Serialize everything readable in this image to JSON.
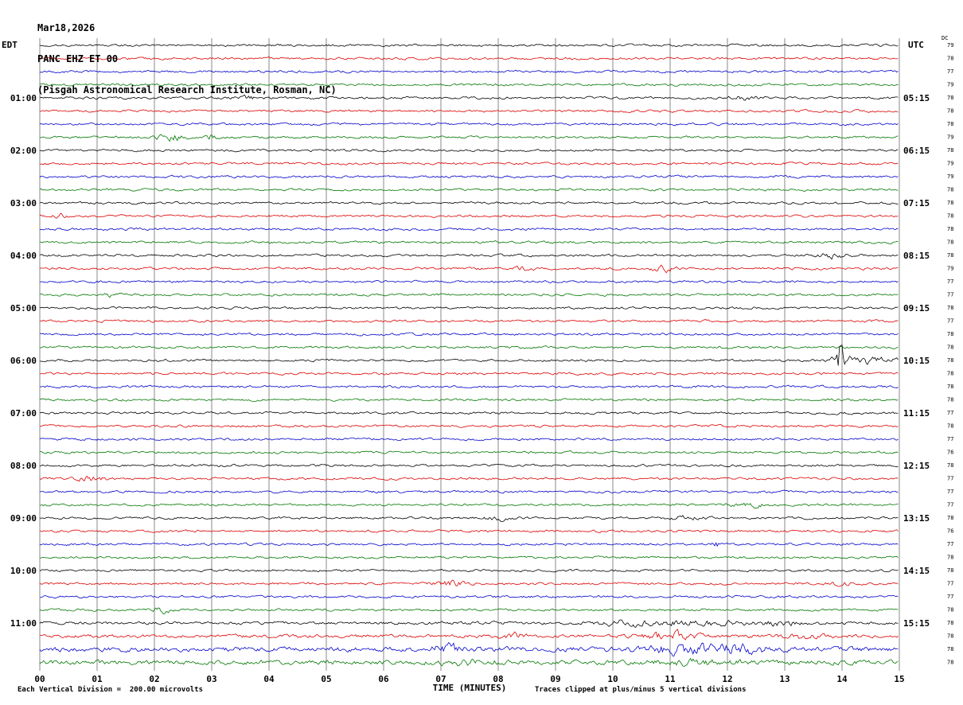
{
  "header": {
    "date": "Mar18,2026",
    "station": "PANC EHZ ET 00",
    "location": "(Pisgah Astronomical Research Institute, Rosman, NC)"
  },
  "left_axis_label": "EDT",
  "right_axis_label": "UTC",
  "dc_label": "DC",
  "x_axis": {
    "title": "TIME (MINUTES)",
    "ticks": [
      "00",
      "01",
      "02",
      "03",
      "04",
      "05",
      "06",
      "07",
      "08",
      "09",
      "10",
      "11",
      "12",
      "13",
      "14",
      "15"
    ]
  },
  "footer": {
    "left": "Each Vertical Division =  200.00 microvolts",
    "right": "Traces clipped at plus/minus 5 vertical divisions"
  },
  "colors": {
    "trace_cycle": [
      "#000000",
      "#dd0000",
      "#0000cc",
      "#007700"
    ],
    "grid": "#888888",
    "text": "#000000"
  },
  "chart_data": {
    "type": "line",
    "subtype": "helicorder-seismogram",
    "title": "PANC EHZ ET 00 webicorder, Mar18,2026",
    "xlabel": "TIME (MINUTES)",
    "xlim": [
      0,
      15
    ],
    "minutes_per_row": 15,
    "rows_per_hour": 4,
    "clip_divisions": 5,
    "microvolts_per_division": 200.0,
    "rows": [
      {
        "t": "00:00",
        "dc": 79
      },
      {
        "t": "00:15",
        "dc": 78
      },
      {
        "t": "00:30",
        "dc": 77
      },
      {
        "t": "00:45",
        "dc": 79
      },
      {
        "t": "01:00",
        "dc": 78,
        "L": "01:00",
        "R": "05:15",
        "ev": [
          [
            3.7,
            0.25,
            1.5
          ],
          [
            12.3,
            0.3,
            1.2
          ]
        ]
      },
      {
        "t": "01:15",
        "dc": 78
      },
      {
        "t": "01:30",
        "dc": 78
      },
      {
        "t": "01:45",
        "dc": 79,
        "ev": [
          [
            2.3,
            0.25,
            2.8
          ],
          [
            3.0,
            0.12,
            2.2
          ]
        ]
      },
      {
        "t": "02:00",
        "dc": 78,
        "L": "02:00",
        "R": "06:15"
      },
      {
        "t": "02:15",
        "dc": 79
      },
      {
        "t": "02:30",
        "dc": 79
      },
      {
        "t": "02:45",
        "dc": 78
      },
      {
        "t": "03:00",
        "dc": 78,
        "L": "03:00",
        "R": "07:15"
      },
      {
        "t": "03:15",
        "dc": 78,
        "ev": [
          [
            0.35,
            0.12,
            2.2
          ]
        ]
      },
      {
        "t": "03:30",
        "dc": 78
      },
      {
        "t": "03:45",
        "dc": 78
      },
      {
        "t": "04:00",
        "dc": 78,
        "L": "04:00",
        "R": "08:15",
        "ev": [
          [
            13.8,
            0.3,
            1.8
          ]
        ]
      },
      {
        "t": "04:15",
        "dc": 79,
        "ev": [
          [
            8.45,
            0.15,
            1.6
          ],
          [
            10.85,
            0.2,
            2.6
          ]
        ]
      },
      {
        "t": "04:30",
        "dc": 77
      },
      {
        "t": "04:45",
        "dc": 77,
        "ev": [
          [
            1.2,
            0.15,
            1.8
          ]
        ]
      },
      {
        "t": "05:00",
        "dc": 78,
        "L": "05:00",
        "R": "09:15"
      },
      {
        "t": "05:15",
        "dc": 77
      },
      {
        "t": "05:30",
        "dc": 78
      },
      {
        "t": "05:45",
        "dc": 78
      },
      {
        "t": "06:00",
        "dc": 78,
        "L": "06:00",
        "R": "10:15",
        "ev": [
          [
            13.95,
            0.08,
            20
          ],
          [
            14.2,
            0.35,
            2.6
          ],
          [
            14.6,
            0.5,
            1.5
          ]
        ]
      },
      {
        "t": "06:15",
        "dc": 78
      },
      {
        "t": "06:30",
        "dc": 78
      },
      {
        "t": "06:45",
        "dc": 78
      },
      {
        "t": "07:00",
        "dc": 77,
        "L": "07:00",
        "R": "11:15"
      },
      {
        "t": "07:15",
        "dc": 78
      },
      {
        "t": "07:30",
        "dc": 77
      },
      {
        "t": "07:45",
        "dc": 76
      },
      {
        "t": "08:00",
        "dc": 78,
        "L": "08:00",
        "R": "12:15"
      },
      {
        "t": "08:15",
        "dc": 77,
        "ev": [
          [
            0.9,
            0.25,
            2.0
          ]
        ]
      },
      {
        "t": "08:30",
        "dc": 77
      },
      {
        "t": "08:45",
        "dc": 77,
        "ev": [
          [
            12.4,
            0.3,
            1.6
          ]
        ]
      },
      {
        "t": "09:00",
        "dc": 78,
        "L": "09:00",
        "R": "13:15",
        "ev": [
          [
            8.0,
            0.25,
            1.5
          ],
          [
            11.3,
            0.3,
            1.3
          ]
        ]
      },
      {
        "t": "09:15",
        "dc": 76
      },
      {
        "t": "09:30",
        "dc": 77,
        "ev": [
          [
            11.8,
            0.06,
            2.6
          ]
        ]
      },
      {
        "t": "09:45",
        "dc": 78
      },
      {
        "t": "10:00",
        "dc": 78,
        "L": "10:00",
        "R": "14:15"
      },
      {
        "t": "10:15",
        "dc": 77,
        "ev": [
          [
            7.2,
            0.3,
            2.2
          ],
          [
            13.9,
            0.2,
            1.6
          ]
        ]
      },
      {
        "t": "10:30",
        "dc": 77
      },
      {
        "t": "10:45",
        "dc": 78,
        "ev": [
          [
            2.15,
            0.15,
            2.2
          ]
        ]
      },
      {
        "t": "11:00",
        "dc": 78,
        "L": "11:00",
        "R": "15:15",
        "amp": 1.3,
        "ev": [
          [
            10.3,
            0.5,
            2.0
          ],
          [
            11.5,
            0.7,
            1.8
          ],
          [
            12.9,
            0.4,
            1.6
          ]
        ]
      },
      {
        "t": "11:15",
        "dc": 78,
        "amp": 1.4,
        "ev": [
          [
            8.3,
            0.2,
            2.2
          ],
          [
            11.0,
            0.45,
            2.8
          ],
          [
            13.3,
            0.3,
            1.6
          ]
        ]
      },
      {
        "t": "11:30",
        "dc": 78,
        "amp": 2.0,
        "ev": [
          [
            7.1,
            0.25,
            3.2
          ],
          [
            11.3,
            0.8,
            3.5
          ],
          [
            12.3,
            0.4,
            2.5
          ]
        ]
      },
      {
        "t": "11:45",
        "dc": 78,
        "amp": 1.9,
        "ev": [
          [
            7.5,
            0.5,
            1.5
          ],
          [
            11.5,
            0.7,
            1.5
          ]
        ]
      }
    ]
  }
}
